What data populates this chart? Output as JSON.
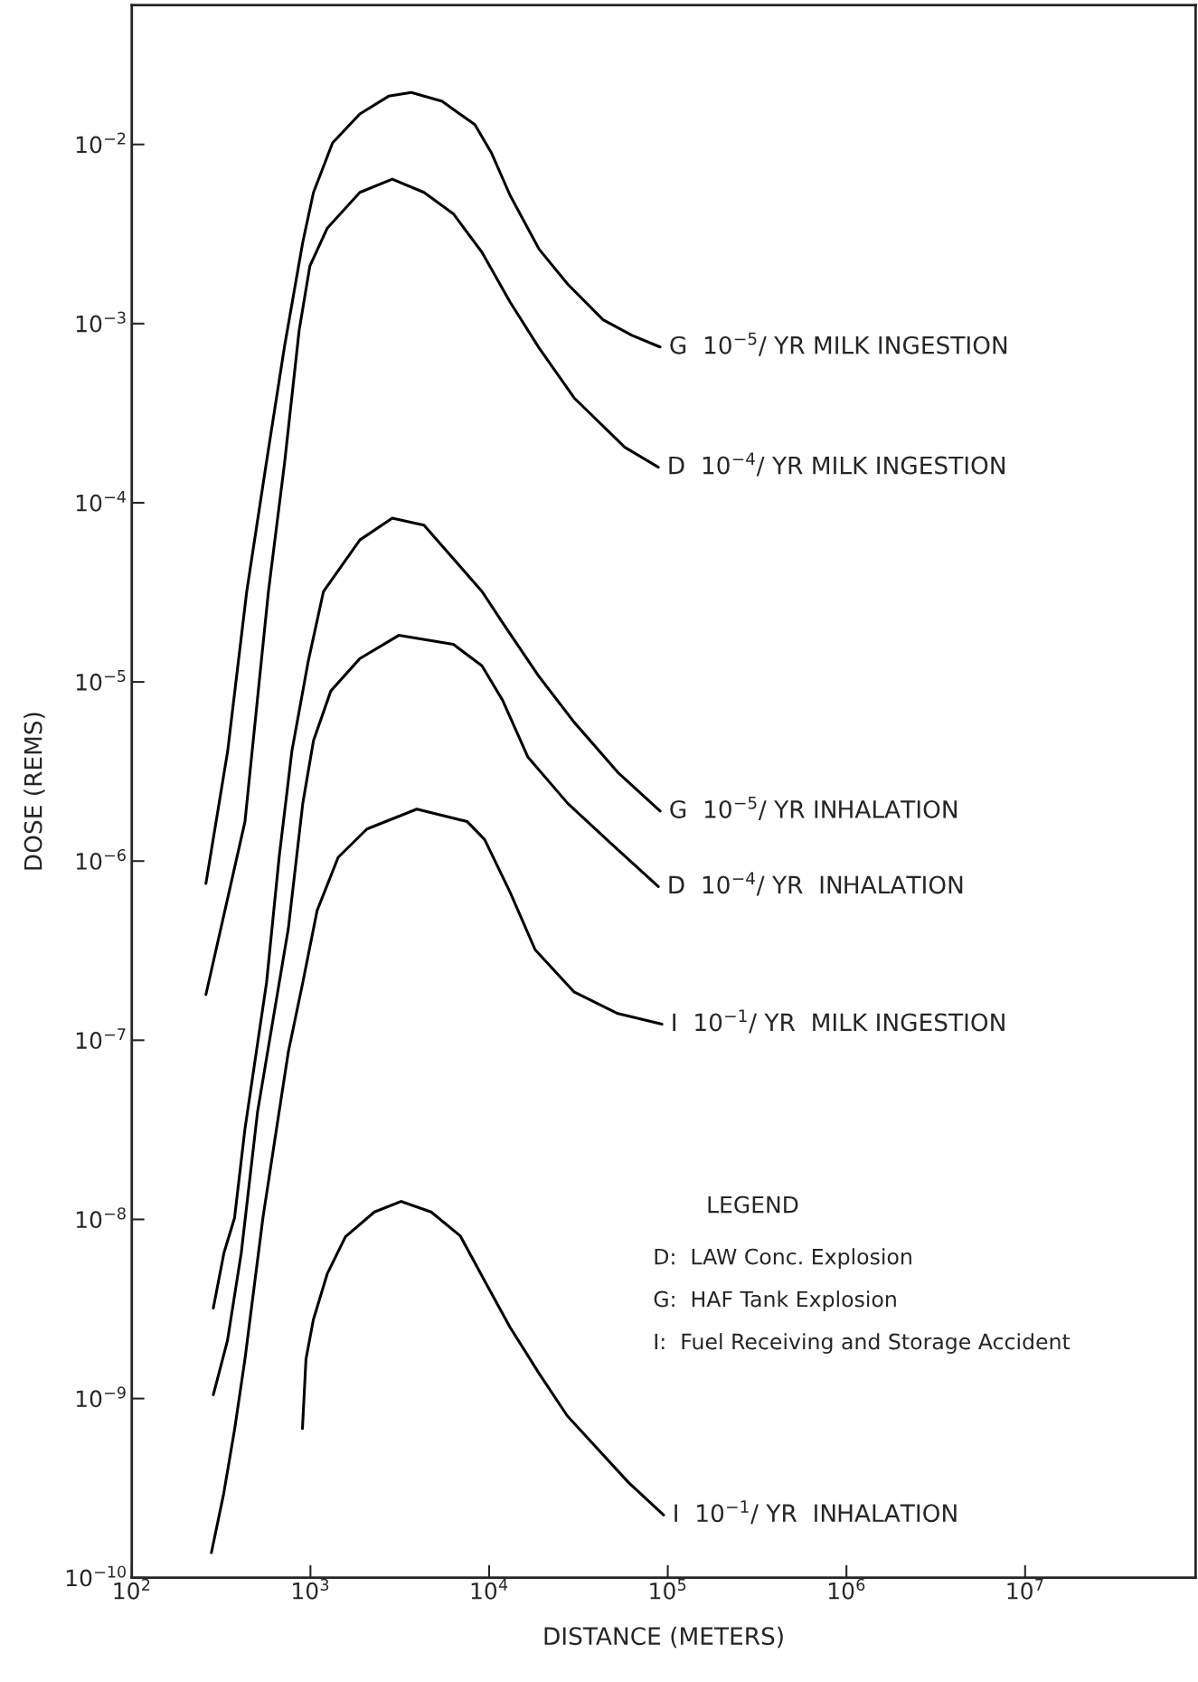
{
  "chart_data": {
    "type": "line",
    "xlabel": "DISTANCE (METERS)",
    "ylabel": "DOSE (REMS)",
    "log": "xy",
    "xlim": [
      100,
      90000000
    ],
    "ylim": [
      1e-10,
      0.06
    ],
    "xticks": [
      {
        "value": 100,
        "label": "10$^{2}$"
      },
      {
        "value": 1000,
        "label": "10$^{3}$"
      },
      {
        "value": 10000,
        "label": "10$^{4}$"
      },
      {
        "value": 100000,
        "label": "10$^{5}$"
      },
      {
        "value": 1000000,
        "label": "10$^{6}$"
      },
      {
        "value": 10000000,
        "label": "10$^{7}$"
      }
    ],
    "yticks": [
      {
        "value": 1e-10,
        "label": "10$^{−10}$"
      },
      {
        "value": 1e-09,
        "label": "10$^{−9}$"
      },
      {
        "value": 1e-08,
        "label": "10$^{−8}$"
      },
      {
        "value": 1e-07,
        "label": "10$^{−7}$"
      },
      {
        "value": 1e-06,
        "label": "10$^{−6}$"
      },
      {
        "value": 1e-05,
        "label": "10$^{−5}$"
      },
      {
        "value": 0.0001,
        "label": "10$^{−4}$"
      },
      {
        "value": 0.001,
        "label": "10$^{−3}$"
      },
      {
        "value": 0.01,
        "label": "10$^{−2}$"
      }
    ],
    "grid": false,
    "legend": false,
    "marker": "none",
    "line_style": "solid",
    "series": [
      {
        "name": "G  10$^{−5}$/ YR MILK INGESTION",
        "color": "#000000",
        "x": [
          260,
          344,
          440,
          568,
          718,
          906,
          1040,
          1330,
          1890,
          2740,
          3670,
          5460,
          8320,
          10350,
          13100,
          19050,
          27540,
          43450,
          63100,
          90600
        ],
        "values": [
          7.5e-07,
          4.1e-06,
          3.2e-05,
          0.00017,
          0.00076,
          0.00285,
          0.0054,
          0.0102,
          0.0148,
          0.0186,
          0.0195,
          0.0174,
          0.0129,
          0.0089,
          0.0052,
          0.0026,
          0.00166,
          0.00105,
          0.00086,
          0.00074
        ]
      },
      {
        "name": "D  10$^{−4}$/ YR MILK INGESTION",
        "color": "#000000",
        "x": [
          260,
          430,
          582,
          718,
          865,
          993,
          1240,
          1890,
          2870,
          4320,
          6310,
          9120,
          13100,
          19050,
          29900,
          57500,
          88500
        ],
        "values": [
          1.8e-07,
          1.66e-06,
          3.2e-05,
          0.00017,
          0.00092,
          0.0021,
          0.0034,
          0.0054,
          0.0064,
          0.0054,
          0.0041,
          0.0025,
          0.00132,
          0.00073,
          0.000385,
          0.000204,
          0.000158
        ]
      },
      {
        "name": "G  10$^{−5}$/ YR INHALATION",
        "color": "#000000",
        "x": [
          286,
          328,
          376,
          430,
          568,
          668,
          787,
          970,
          1183,
          1890,
          2870,
          4320,
          9120,
          11900,
          19050,
          29900,
          52500,
          90600
        ],
        "values": [
          3.2e-09,
          6.5e-09,
          1.02e-08,
          3.2e-08,
          2.1e-07,
          1.05e-06,
          4.1e-06,
          1.29e-05,
          3.2e-05,
          6.2e-05,
          8.2e-05,
          7.5e-05,
          3.2e-05,
          2.14e-05,
          1.07e-05,
          5.96e-06,
          3.13e-06,
          1.9e-06
        ]
      },
      {
        "name": "D  10$^{−4}$/ YR  INHALATION",
        "color": "#000000",
        "x": [
          286,
          343,
          410,
          506,
          752,
          906,
          1040,
          1300,
          1890,
          3120,
          6310,
          9120,
          11900,
          16500,
          27540,
          47900,
          88500
        ],
        "values": [
          1.05e-09,
          2.1e-09,
          6.5e-09,
          4e-08,
          4.2e-07,
          2.1e-06,
          4.7e-06,
          8.9e-06,
          1.35e-05,
          1.82e-05,
          1.62e-05,
          1.23e-05,
          7.9e-06,
          3.8e-06,
          2.1e-06,
          1.26e-06,
          7.2e-07
        ]
      },
      {
        "name": "I  10$^{−1}$/ YR  MILK INGESTION",
        "color": "#000000",
        "x": [
          279,
          327,
          376,
          430,
          542,
          668,
          752,
          906,
          1090,
          1430,
          2070,
          3940,
          7550,
          9440,
          13100,
          18100,
          29900,
          52500,
          92700
        ],
        "values": [
          1.38e-10,
          2.95e-10,
          6.7e-10,
          1.66e-09,
          1.02e-08,
          4e-08,
          8.6e-08,
          2.1e-07,
          5.3e-07,
          1.05e-06,
          1.51e-06,
          1.95e-06,
          1.66e-06,
          1.32e-06,
          6.7e-07,
          3.2e-07,
          1.86e-07,
          1.41e-07,
          1.23e-07
        ]
      },
      {
        "name": "I  10$^{−1}$/ YR  INHALATION",
        "color": "#000000",
        "x": [
          902,
          944,
          1038,
          1240,
          1570,
          2280,
          3210,
          4740,
          6890,
          9490,
          13100,
          19050,
          27400,
          41500,
          60300,
          94800
        ],
        "values": [
          6.8e-10,
          1.66e-09,
          2.75e-09,
          4.95e-09,
          8e-09,
          1.1e-08,
          1.26e-08,
          1.1e-08,
          8.1e-09,
          4.5e-09,
          2.5e-09,
          1.38e-09,
          8e-10,
          5.1e-10,
          3.4e-10,
          2.24e-10
        ]
      }
    ],
    "annotations": [
      "LEGEND",
      "D:  LAW Conc. Explosion",
      "G:  HAF Tank Explosion",
      "I:  Fuel Receiving and Storage Accident"
    ]
  }
}
